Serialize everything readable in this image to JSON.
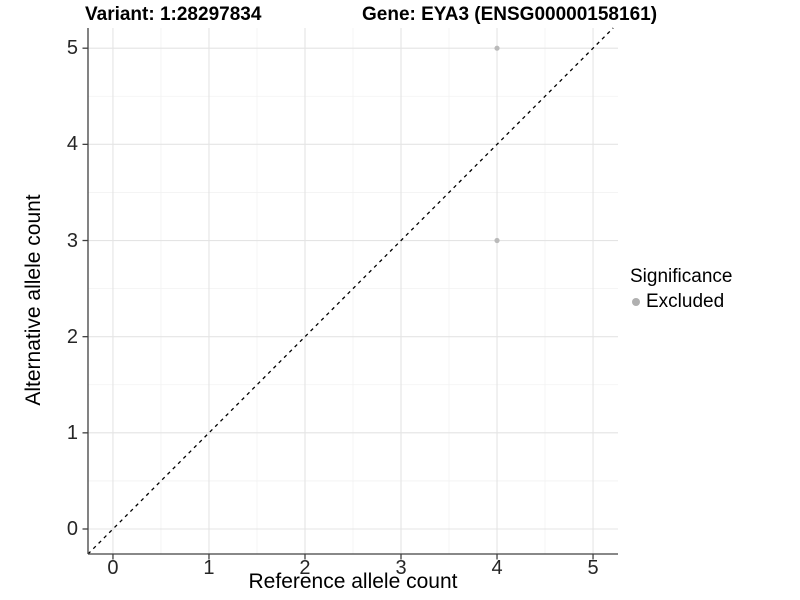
{
  "header": {
    "variant_title": "Variant: 1:28297834",
    "gene_title": "Gene: EYA3 (ENSG00000158161)"
  },
  "legend": {
    "title": "Significance",
    "items": [
      {
        "label": "Excluded",
        "color": "#b0b0b0"
      }
    ]
  },
  "chart_data": {
    "type": "scatter",
    "title": "Variant: 1:28297834    Gene: EYA3 (ENSG00000158161)",
    "xlabel": "Reference allele count",
    "ylabel": "Alternative allele count",
    "x_ticks": [
      0,
      1,
      2,
      3,
      4,
      5
    ],
    "y_ticks": [
      0,
      1,
      2,
      3,
      4,
      5
    ],
    "xlim": [
      -0.26,
      5.26
    ],
    "ylim": [
      -0.26,
      5.21
    ],
    "series": [
      {
        "name": "Excluded",
        "color": "#bababa",
        "points": [
          {
            "x": 4,
            "y": 5
          },
          {
            "x": 4,
            "y": 3
          }
        ]
      }
    ],
    "reference_line": {
      "slope": 1,
      "intercept": 0,
      "style": "dashed",
      "color": "#000000"
    },
    "grid": {
      "major_step": 1,
      "minor_step": 0.5,
      "major_color": "#e4e4e4",
      "minor_color": "#f2f2f2"
    },
    "legend_position": "right",
    "point_radius": 2.6
  },
  "style": {
    "axis_color": "#404040",
    "tick_label_color": "#262626",
    "background": "#ffffff"
  }
}
